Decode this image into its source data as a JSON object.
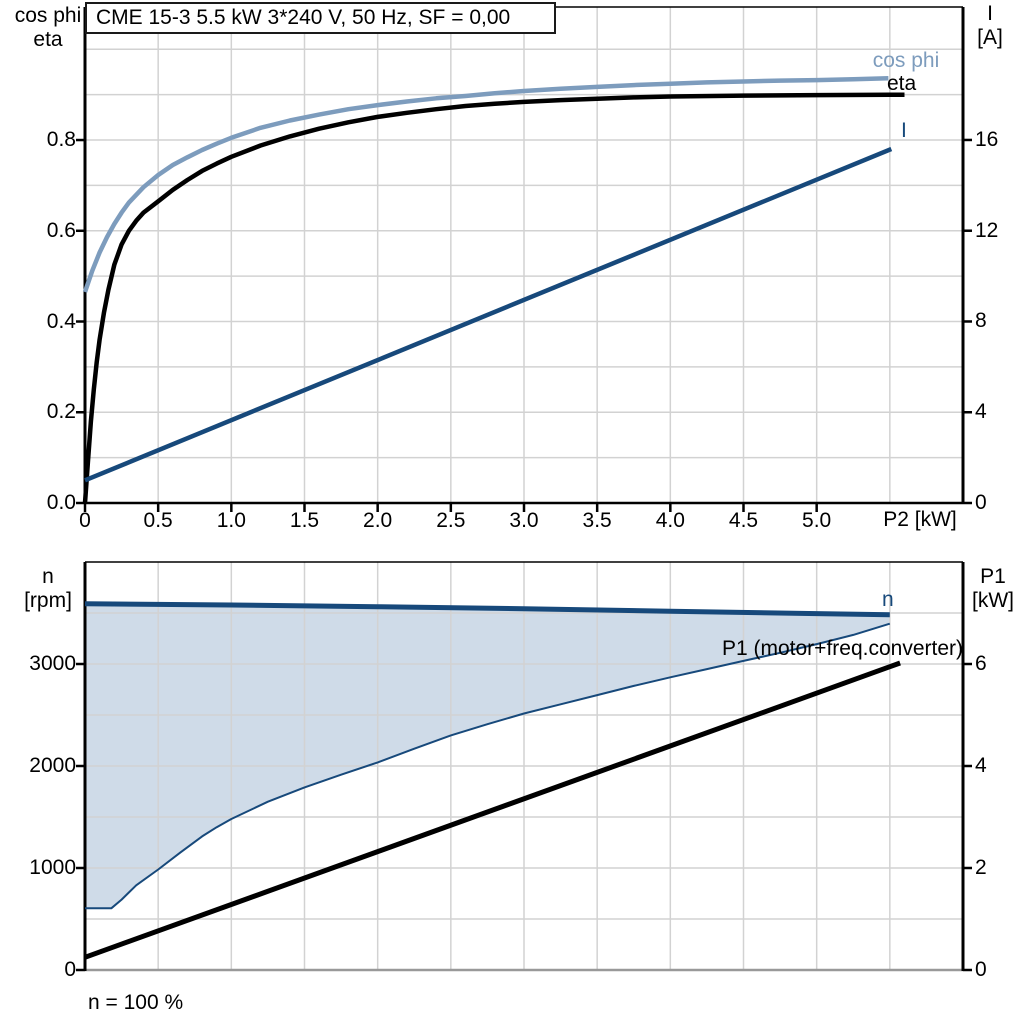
{
  "header": {
    "title": "CME 15-3   5.5 kW   3*240 V, 50 Hz, SF = 0,00"
  },
  "labels": {
    "top_left_axis_line1": "cos phi",
    "top_left_axis_line2": "eta",
    "top_right_axis_line1": "I",
    "top_right_axis_line2": "[A]",
    "top_x_axis": "P2 [kW]",
    "curve_cos_phi": "cos phi",
    "curve_eta": "eta",
    "curve_current": "I",
    "bottom_left_axis_line1": "n",
    "bottom_left_axis_line2": "[rpm]",
    "bottom_right_axis_line1": "P1",
    "bottom_right_axis_line2": "[kW]",
    "curve_n": "n",
    "curve_p1": "P1 (motor+freq.converter)",
    "speed_note": "n = 100 %"
  },
  "colors": {
    "steel_blue": "#7D9CBD",
    "dark_blue": "#17497B",
    "band_fill": "#CFDBE8",
    "grid": "#D2D2D2",
    "axis_black": "#000000",
    "frame_gray": "#999999"
  },
  "chart_data": [
    {
      "type": "line",
      "title": "CME 15-3   5.5 kW   3*240 V, 50 Hz, SF = 0,00",
      "frame": {
        "l": 85,
        "r": 963,
        "t": 7,
        "b": 503
      },
      "frame_style": {
        "side_w": 3,
        "top_w": 1.5,
        "bottom_w": 2.5,
        "side_color": "#000000",
        "top_color": "#000000",
        "bottom_color": "#000000"
      },
      "x": {
        "min": 0,
        "max": 6.0,
        "label": "P2 [kW]"
      },
      "yleft": {
        "min": 0,
        "max": 1.0932,
        "label": "cos phi / eta"
      },
      "yright": {
        "min": 0,
        "max": 21.86,
        "label": "I [A]"
      },
      "grid": {
        "v": [
          0.5,
          1.0,
          1.5,
          2.0,
          2.5,
          3.0,
          3.5,
          4.0,
          4.5,
          5.0,
          5.5
        ],
        "h_axis": "yleft",
        "h": [
          0.1,
          0.2,
          0.3,
          0.4,
          0.5,
          0.6,
          0.7,
          0.8,
          0.9,
          1.0
        ]
      },
      "ticks": {
        "left": {
          "values": [
            0,
            0.2,
            0.4,
            0.6,
            0.8
          ],
          "labels": [
            "0.0",
            "0.2",
            "0.4",
            "0.6",
            "0.8"
          ]
        },
        "right": {
          "values": [
            0,
            4,
            8,
            12,
            16
          ],
          "labels": [
            "0",
            "4",
            "8",
            "12",
            "16"
          ]
        },
        "x": {
          "values": [
            0,
            0.5,
            1.0,
            1.5,
            2.0,
            2.5,
            3.0,
            3.5,
            4.0,
            4.5,
            5.0
          ],
          "labels": [
            "0",
            "0.5",
            "1.0",
            "1.5",
            "2.0",
            "2.5",
            "3.0",
            "3.5",
            "4.0",
            "4.5",
            "5.0"
          ]
        }
      },
      "series": [
        {
          "name": "cos-phi",
          "axis": "yleft",
          "color": "#7D9CBD",
          "width": 4.5,
          "points": [
            [
              0,
              0.465
            ],
            [
              0.05,
              0.512
            ],
            [
              0.1,
              0.552
            ],
            [
              0.15,
              0.586
            ],
            [
              0.2,
              0.615
            ],
            [
              0.25,
              0.64
            ],
            [
              0.3,
              0.662
            ],
            [
              0.4,
              0.696
            ],
            [
              0.5,
              0.723
            ],
            [
              0.6,
              0.745
            ],
            [
              0.7,
              0.762
            ],
            [
              0.8,
              0.778
            ],
            [
              0.9,
              0.792
            ],
            [
              1.0,
              0.805
            ],
            [
              1.2,
              0.827
            ],
            [
              1.4,
              0.843
            ],
            [
              1.6,
              0.856
            ],
            [
              1.8,
              0.868
            ],
            [
              2.0,
              0.877
            ],
            [
              2.2,
              0.885
            ],
            [
              2.4,
              0.892
            ],
            [
              2.6,
              0.897
            ],
            [
              2.8,
              0.903
            ],
            [
              3.0,
              0.908
            ],
            [
              3.25,
              0.913
            ],
            [
              3.5,
              0.917
            ],
            [
              3.75,
              0.921
            ],
            [
              4.0,
              0.924
            ],
            [
              4.25,
              0.927
            ],
            [
              4.5,
              0.929
            ],
            [
              4.75,
              0.931
            ],
            [
              5.0,
              0.932
            ],
            [
              5.25,
              0.934
            ],
            [
              5.49,
              0.936
            ]
          ]
        },
        {
          "name": "eta",
          "axis": "yleft",
          "color": "#000000",
          "width": 4.5,
          "points": [
            [
              0,
              0.0
            ],
            [
              0.02,
              0.09
            ],
            [
              0.04,
              0.18
            ],
            [
              0.06,
              0.25
            ],
            [
              0.08,
              0.31
            ],
            [
              0.1,
              0.36
            ],
            [
              0.13,
              0.42
            ],
            [
              0.16,
              0.47
            ],
            [
              0.2,
              0.525
            ],
            [
              0.25,
              0.57
            ],
            [
              0.3,
              0.6
            ],
            [
              0.35,
              0.622
            ],
            [
              0.4,
              0.64
            ],
            [
              0.5,
              0.665
            ],
            [
              0.6,
              0.69
            ],
            [
              0.7,
              0.712
            ],
            [
              0.8,
              0.732
            ],
            [
              0.9,
              0.748
            ],
            [
              1.0,
              0.763
            ],
            [
              1.2,
              0.788
            ],
            [
              1.4,
              0.808
            ],
            [
              1.6,
              0.825
            ],
            [
              1.8,
              0.839
            ],
            [
              2.0,
              0.851
            ],
            [
              2.2,
              0.86
            ],
            [
              2.4,
              0.868
            ],
            [
              2.6,
              0.875
            ],
            [
              2.8,
              0.88
            ],
            [
              3.0,
              0.884
            ],
            [
              3.25,
              0.888
            ],
            [
              3.5,
              0.891
            ],
            [
              3.75,
              0.894
            ],
            [
              4.0,
              0.896
            ],
            [
              4.5,
              0.898
            ],
            [
              5.0,
              0.899
            ],
            [
              5.6,
              0.9
            ]
          ]
        },
        {
          "name": "current",
          "axis": "yright",
          "color": "#17497B",
          "width": 4.5,
          "points": [
            [
              0,
              1.0
            ],
            [
              5.51,
              15.6
            ]
          ]
        }
      ]
    },
    {
      "type": "line",
      "title": "speed range and input power",
      "frame": {
        "l": 85,
        "r": 963,
        "t": 562,
        "b": 970
      },
      "frame_style": {
        "side_w": 3,
        "top_w": 1.5,
        "bottom_w": 2.5,
        "side_color": "#000000",
        "top_color": "#000000",
        "bottom_color": "#999999"
      },
      "x": {
        "min": 0,
        "max": 6.0,
        "label": ""
      },
      "yleft": {
        "min": 0,
        "max": 4000,
        "label": "n [rpm]"
      },
      "yright": {
        "min": 0,
        "max": 8,
        "label": "P1 [kW]"
      },
      "grid": {
        "v": [
          0.5,
          1.0,
          1.5,
          2.0,
          2.5,
          3.0,
          3.5,
          4.0,
          4.5,
          5.0,
          5.5
        ],
        "h_axis": "yleft",
        "h": [
          500,
          1000,
          1500,
          2000,
          2500,
          3000,
          3500
        ]
      },
      "ticks": {
        "left": {
          "values": [
            0,
            1000,
            2000,
            3000
          ],
          "labels": [
            "0",
            "1000",
            "2000",
            "3000"
          ]
        },
        "right": {
          "values": [
            0,
            2,
            4,
            6
          ],
          "labels": [
            "0",
            "2",
            "4",
            "6"
          ]
        }
      },
      "band": {
        "upper": "n",
        "lower": "n-min",
        "fill": "#CFDBE8"
      },
      "series": [
        {
          "name": "n-min",
          "axis": "yleft",
          "color": "#17497B",
          "width": 2,
          "points": [
            [
              0,
              605
            ],
            [
              0.18,
              605
            ],
            [
              0.25,
              690
            ],
            [
              0.35,
              830
            ],
            [
              0.5,
              985
            ],
            [
              0.65,
              1150
            ],
            [
              0.8,
              1310
            ],
            [
              0.9,
              1400
            ],
            [
              1.0,
              1480
            ],
            [
              1.25,
              1650
            ],
            [
              1.5,
              1790
            ],
            [
              1.75,
              1915
            ],
            [
              2.0,
              2035
            ],
            [
              2.25,
              2170
            ],
            [
              2.5,
              2300
            ],
            [
              2.75,
              2410
            ],
            [
              3.0,
              2515
            ],
            [
              3.25,
              2605
            ],
            [
              3.5,
              2695
            ],
            [
              3.75,
              2785
            ],
            [
              4.0,
              2870
            ],
            [
              4.25,
              2950
            ],
            [
              4.5,
              3030
            ],
            [
              4.75,
              3110
            ],
            [
              5.0,
              3195
            ],
            [
              5.25,
              3285
            ],
            [
              5.5,
              3395
            ]
          ]
        },
        {
          "name": "n",
          "axis": "yleft",
          "color": "#17497B",
          "width": 5,
          "points": [
            [
              0,
              3590
            ],
            [
              1.0,
              3578
            ],
            [
              2.0,
              3562
            ],
            [
              3.0,
              3542
            ],
            [
              4.0,
              3518
            ],
            [
              5.0,
              3494
            ],
            [
              5.5,
              3483
            ]
          ]
        },
        {
          "name": "p1",
          "axis": "yright",
          "color": "#000000",
          "width": 5,
          "points": [
            [
              0,
              0.25
            ],
            [
              5.57,
              6.02
            ]
          ]
        }
      ]
    }
  ]
}
